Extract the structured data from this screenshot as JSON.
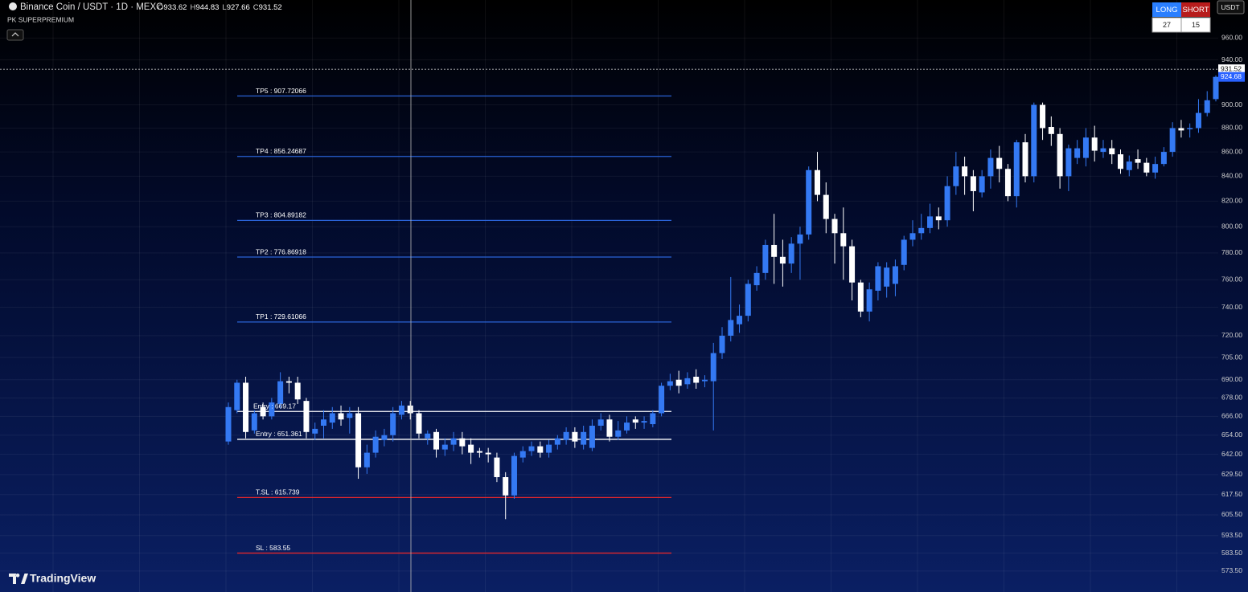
{
  "chart_data": {
    "type": "candlestick",
    "symbol": "Binance Coin / USDT · 1D · MEXC",
    "indicator": "PK SUPERPREMIUM",
    "ohlc_legend": [
      {
        "name": "O",
        "value": 933.62
      },
      {
        "name": "H",
        "value": 944.83
      },
      {
        "name": "L",
        "value": 927.66
      },
      {
        "name": "C",
        "value": 931.52
      }
    ],
    "signals": [
      {
        "name": "LONG",
        "value": 27,
        "color": "#2a7fff"
      },
      {
        "name": "SHORT",
        "value": 15,
        "color": "#b71c1c"
      }
    ],
    "currency": "USDT",
    "watermark": "TradingView",
    "log_scale": true,
    "grid": true,
    "up_color": "#3479f3",
    "down_color": "#ffffff",
    "ylim": [
      562,
      996
    ],
    "yticks": [
      {
        "value": 960,
        "label": "960.00"
      },
      {
        "value": 940,
        "label": "940.00"
      },
      {
        "value": 900,
        "label": "900.00"
      },
      {
        "value": 880,
        "label": "880.00"
      },
      {
        "value": 860,
        "label": "860.00"
      },
      {
        "value": 840,
        "label": "840.00"
      },
      {
        "value": 820,
        "label": "820.00"
      },
      {
        "value": 800,
        "label": "800.00"
      },
      {
        "value": 780,
        "label": "780.00"
      },
      {
        "value": 760,
        "label": "760.00"
      },
      {
        "value": 740,
        "label": "740.00"
      },
      {
        "value": 720,
        "label": "720.00"
      },
      {
        "value": 705,
        "label": "705.00"
      },
      {
        "value": 690,
        "label": "690.00"
      },
      {
        "value": 678,
        "label": "678.00"
      },
      {
        "value": 666,
        "label": "666.00"
      },
      {
        "value": 654,
        "label": "654.00"
      },
      {
        "value": 642,
        "label": "642.00"
      },
      {
        "value": 629.5,
        "label": "629.50"
      },
      {
        "value": 617.5,
        "label": "617.50"
      },
      {
        "value": 605.5,
        "label": "605.50"
      },
      {
        "value": 593.5,
        "label": "593.50"
      },
      {
        "value": 583.5,
        "label": "583.50"
      },
      {
        "value": 573.5,
        "label": "573.50"
      }
    ],
    "crosshair_price": 931.52,
    "last_price": 924.68,
    "levels": [
      {
        "label": "TP5 : 907.72066",
        "value": 907.72066,
        "color": "#2a63d6"
      },
      {
        "label": "TP4 : 856.24687",
        "value": 856.24687,
        "color": "#2a63d6"
      },
      {
        "label": "TP3 : 804.89182",
        "value": 804.89182,
        "color": "#2a63d6"
      },
      {
        "label": "TP2 : 776.86918",
        "value": 776.86918,
        "color": "#2a63d6"
      },
      {
        "label": "TP1 : 729.61066",
        "value": 729.61066,
        "color": "#2a63d6"
      },
      {
        "label": "Entry : 669.17",
        "value": 669.17,
        "color": "#ffffff"
      },
      {
        "label": "Entry : 651.361",
        "value": 651.361,
        "color": "#ffffff"
      },
      {
        "label": "T.SL : 615.739",
        "value": 615.739,
        "color": "#e3262c"
      },
      {
        "label": "SL : 583.55",
        "value": 583.55,
        "color": "#e3262c"
      }
    ],
    "open": [
      650,
      670,
      688,
      657,
      672,
      666,
      674,
      689,
      688,
      676,
      655,
      660,
      662,
      668,
      665,
      668,
      634,
      643,
      651,
      654,
      667,
      673,
      668,
      652,
      656,
      645,
      648,
      652,
      648,
      644,
      643,
      640,
      628,
      617,
      640,
      644,
      647,
      643,
      648,
      651,
      656,
      648,
      646,
      660,
      664,
      653,
      657,
      664,
      662,
      661,
      668,
      686,
      690,
      687,
      692,
      689,
      689,
      708,
      720,
      728,
      734,
      756,
      765,
      786,
      777,
      772,
      787,
      794,
      845,
      825,
      806,
      795,
      785,
      758,
      737,
      752,
      755,
      757,
      771,
      790,
      795,
      799,
      808,
      805,
      832,
      848,
      840,
      827,
      840,
      855,
      846,
      824,
      868,
      840,
      900,
      881,
      875,
      840,
      855,
      855,
      872,
      860,
      863,
      858,
      845,
      854,
      851,
      843,
      850,
      860,
      880,
      879,
      880,
      893,
      905
    ],
    "high": [
      675,
      690,
      692,
      670,
      675,
      678,
      695,
      692,
      692,
      678,
      662,
      670,
      672,
      673,
      672,
      672,
      648,
      657,
      658,
      672,
      676,
      676,
      670,
      657,
      658,
      652,
      656,
      656,
      652,
      646,
      646,
      643,
      631,
      643,
      647,
      650,
      650,
      651,
      654,
      659,
      659,
      660,
      664,
      668,
      667,
      663,
      666,
      666,
      666,
      670,
      688,
      694,
      696,
      695,
      697,
      693,
      715,
      726,
      762,
      742,
      760,
      770,
      790,
      810,
      790,
      792,
      800,
      848,
      860,
      835,
      810,
      815,
      790,
      760,
      758,
      773,
      773,
      775,
      793,
      805,
      810,
      818,
      815,
      840,
      860,
      856,
      845,
      845,
      862,
      865,
      850,
      870,
      875,
      902,
      902,
      890,
      880,
      866,
      870,
      880,
      882,
      870,
      870,
      862,
      857,
      862,
      855,
      856,
      864,
      885,
      887,
      884,
      905,
      912,
      926
    ],
    "low": [
      648,
      668,
      652,
      655,
      664,
      664,
      671,
      681,
      674,
      652,
      651,
      652,
      658,
      660,
      655,
      627,
      630,
      640,
      647,
      650,
      664,
      664,
      652,
      648,
      640,
      641,
      644,
      642,
      636,
      640,
      637,
      625,
      603,
      615,
      637,
      641,
      640,
      640,
      645,
      648,
      646,
      645,
      644,
      657,
      650,
      651,
      655,
      658,
      658,
      659,
      666,
      683,
      681,
      684,
      684,
      685,
      657,
      704,
      716,
      722,
      730,
      752,
      760,
      757,
      755,
      765,
      760,
      790,
      820,
      795,
      772,
      760,
      745,
      733,
      730,
      745,
      747,
      748,
      767,
      785,
      790,
      795,
      798,
      800,
      825,
      825,
      812,
      823,
      830,
      835,
      820,
      815,
      835,
      835,
      870,
      865,
      830,
      828,
      850,
      848,
      852,
      855,
      850,
      842,
      840,
      846,
      840,
      838,
      848,
      856,
      872,
      872,
      876,
      890,
      903
    ],
    "close": [
      672,
      688,
      656,
      668,
      666,
      675,
      689,
      688,
      677,
      656,
      658,
      664,
      668,
      664,
      668,
      634,
      643,
      653,
      654,
      668,
      673,
      668,
      655,
      655,
      645,
      648,
      652,
      647,
      643,
      643,
      642,
      628,
      617,
      641,
      644,
      647,
      643,
      648,
      652,
      656,
      650,
      656,
      660,
      664,
      653,
      657,
      662,
      662,
      663,
      668,
      686,
      689,
      686,
      691,
      688,
      690,
      708,
      720,
      731,
      734,
      757,
      765,
      786,
      777,
      772,
      787,
      794,
      845,
      825,
      806,
      795,
      785,
      758,
      737,
      753,
      770,
      769,
      770,
      790,
      795,
      799,
      808,
      805,
      832,
      848,
      840,
      828,
      840,
      855,
      846,
      824,
      868,
      840,
      900,
      880,
      875,
      840,
      863,
      863,
      872,
      861,
      863,
      858,
      846,
      852,
      851,
      843,
      850,
      860,
      880,
      878,
      880,
      893,
      904,
      924.68
    ]
  }
}
